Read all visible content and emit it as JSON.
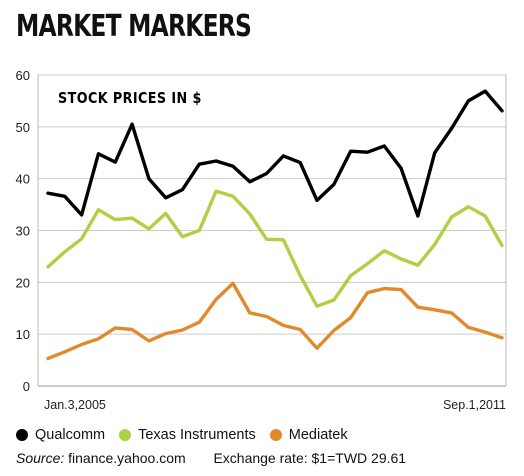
{
  "header": {
    "title": "MARKET MARKERS"
  },
  "chart_data": {
    "type": "line",
    "title": "STOCK PRICES IN $",
    "ylim": [
      0,
      60
    ],
    "yticks": [
      0,
      10,
      20,
      30,
      40,
      50,
      60
    ],
    "x_start_label": "Jan.3,2005",
    "x_end_label": "Sep.1,2011",
    "grid": "horizontal",
    "legend_position": "bottom",
    "series": [
      {
        "name": "Qualcomm",
        "color": "#000000",
        "values": [
          37.2,
          36.6,
          33.0,
          44.8,
          43.2,
          50.5,
          40.0,
          36.3,
          37.9,
          42.8,
          43.4,
          42.4,
          39.4,
          41.0,
          44.4,
          43.1,
          35.8,
          38.9,
          45.3,
          45.1,
          46.3,
          42.0,
          32.8,
          45.0,
          49.7,
          55.0,
          56.9,
          53.1
        ]
      },
      {
        "name": "Texas Instruments",
        "color": "#aed144",
        "values": [
          23.0,
          25.9,
          28.4,
          34.0,
          32.1,
          32.4,
          30.3,
          33.3,
          28.8,
          30.0,
          37.6,
          36.6,
          33.2,
          28.3,
          28.2,
          21.3,
          15.4,
          16.6,
          21.3,
          23.6,
          26.1,
          24.5,
          23.3,
          27.3,
          32.6,
          34.6,
          32.8,
          27.1
        ]
      },
      {
        "name": "Mediatek",
        "color": "#e08a2c",
        "values": [
          5.3,
          6.6,
          8.0,
          9.1,
          11.2,
          10.9,
          8.7,
          10.1,
          10.8,
          12.3,
          16.7,
          19.8,
          14.1,
          13.4,
          11.7,
          10.9,
          7.3,
          10.7,
          13.2,
          18.0,
          18.8,
          18.6,
          15.2,
          14.7,
          14.1,
          11.3,
          10.4,
          9.3
        ]
      }
    ]
  },
  "footer": {
    "source_label": "Source:",
    "source_value": "finance.yahoo.com",
    "exchange_rate": "Exchange rate: $1=TWD 29.61"
  }
}
